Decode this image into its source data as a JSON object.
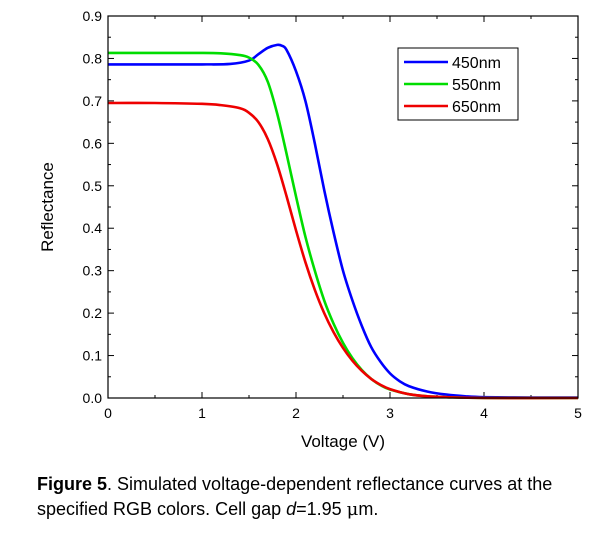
{
  "chart_data": {
    "type": "line",
    "xlabel": "Voltage (V)",
    "ylabel": "Reflectance",
    "xlim": [
      0,
      5
    ],
    "ylim": [
      0.0,
      0.9
    ],
    "xticks": [
      0,
      1,
      2,
      3,
      4,
      5
    ],
    "xtick_labels": [
      "0",
      "1",
      "2",
      "3",
      "4",
      "5"
    ],
    "yticks": [
      0.0,
      0.1,
      0.2,
      0.3,
      0.4,
      0.5,
      0.6,
      0.7,
      0.8,
      0.9
    ],
    "ytick_labels": [
      "0.0",
      "0.1",
      "0.2",
      "0.3",
      "0.4",
      "0.5",
      "0.6",
      "0.7",
      "0.8",
      "0.9"
    ],
    "grid": false,
    "legend_position": "top-right",
    "series": [
      {
        "name": "450nm",
        "color": "#0000ff",
        "points": [
          [
            0,
            0.786
          ],
          [
            0.5,
            0.786
          ],
          [
            1.0,
            0.786
          ],
          [
            1.3,
            0.787
          ],
          [
            1.5,
            0.795
          ],
          [
            1.6,
            0.81
          ],
          [
            1.7,
            0.825
          ],
          [
            1.8,
            0.832
          ],
          [
            1.85,
            0.83
          ],
          [
            1.9,
            0.82
          ],
          [
            2.0,
            0.77
          ],
          [
            2.1,
            0.7
          ],
          [
            2.2,
            0.6
          ],
          [
            2.3,
            0.49
          ],
          [
            2.4,
            0.39
          ],
          [
            2.5,
            0.3
          ],
          [
            2.6,
            0.23
          ],
          [
            2.7,
            0.17
          ],
          [
            2.8,
            0.12
          ],
          [
            2.9,
            0.085
          ],
          [
            3.0,
            0.058
          ],
          [
            3.1,
            0.04
          ],
          [
            3.2,
            0.028
          ],
          [
            3.4,
            0.015
          ],
          [
            3.6,
            0.008
          ],
          [
            3.8,
            0.004
          ],
          [
            4.0,
            0.002
          ],
          [
            4.5,
            0.001
          ],
          [
            5.0,
            0.001
          ]
        ]
      },
      {
        "name": "550nm",
        "color": "#00dd00",
        "points": [
          [
            0,
            0.813
          ],
          [
            0.5,
            0.813
          ],
          [
            1.0,
            0.813
          ],
          [
            1.2,
            0.812
          ],
          [
            1.4,
            0.808
          ],
          [
            1.5,
            0.802
          ],
          [
            1.6,
            0.785
          ],
          [
            1.7,
            0.745
          ],
          [
            1.8,
            0.67
          ],
          [
            1.9,
            0.575
          ],
          [
            2.0,
            0.475
          ],
          [
            2.1,
            0.38
          ],
          [
            2.2,
            0.3
          ],
          [
            2.3,
            0.23
          ],
          [
            2.4,
            0.175
          ],
          [
            2.5,
            0.13
          ],
          [
            2.6,
            0.094
          ],
          [
            2.7,
            0.066
          ],
          [
            2.8,
            0.045
          ],
          [
            2.9,
            0.03
          ],
          [
            3.0,
            0.02
          ],
          [
            3.2,
            0.009
          ],
          [
            3.4,
            0.004
          ],
          [
            3.6,
            0.002
          ],
          [
            4.0,
            0.0
          ],
          [
            5.0,
            0.0
          ]
        ]
      },
      {
        "name": "650nm",
        "color": "#ee0000",
        "points": [
          [
            0,
            0.695
          ],
          [
            0.5,
            0.695
          ],
          [
            1.0,
            0.693
          ],
          [
            1.2,
            0.69
          ],
          [
            1.4,
            0.683
          ],
          [
            1.5,
            0.672
          ],
          [
            1.6,
            0.65
          ],
          [
            1.7,
            0.61
          ],
          [
            1.8,
            0.55
          ],
          [
            1.9,
            0.475
          ],
          [
            2.0,
            0.395
          ],
          [
            2.1,
            0.32
          ],
          [
            2.2,
            0.255
          ],
          [
            2.3,
            0.2
          ],
          [
            2.4,
            0.155
          ],
          [
            2.5,
            0.118
          ],
          [
            2.6,
            0.088
          ],
          [
            2.7,
            0.064
          ],
          [
            2.8,
            0.045
          ],
          [
            2.9,
            0.031
          ],
          [
            3.0,
            0.021
          ],
          [
            3.2,
            0.009
          ],
          [
            3.4,
            0.004
          ],
          [
            3.6,
            0.002
          ],
          [
            4.0,
            0.0
          ],
          [
            5.0,
            0.0
          ]
        ]
      }
    ]
  },
  "caption": {
    "label": "Figure 5",
    "text_1": ". Simulated voltage-dependent reflectance curves at the specified RGB colors. Cell gap ",
    "italic_var": "d",
    "text_2": "=1.95 ",
    "unit_mu": "μ",
    "unit_rest": "m."
  }
}
